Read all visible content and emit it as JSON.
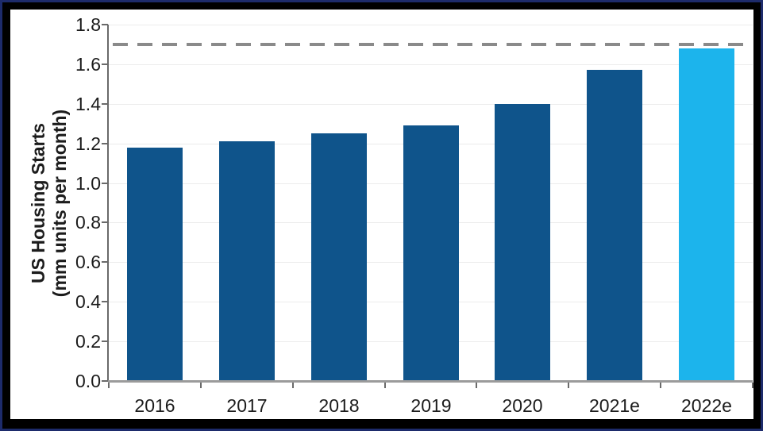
{
  "frame": {
    "outer_border_color": "#1D2B6B",
    "inner_border_color": "#000000",
    "canvas_color": "#ffffff"
  },
  "chart_data": {
    "type": "bar",
    "title": "",
    "ylabel_line1": "US Housing Starts",
    "ylabel_line2": "(mm units per month)",
    "xlabel": "",
    "categories": [
      "2016",
      "2017",
      "2018",
      "2019",
      "2020",
      "2021e",
      "2022e"
    ],
    "values": [
      1.18,
      1.21,
      1.25,
      1.29,
      1.4,
      1.57,
      1.68
    ],
    "bar_colors": [
      "#0F548B",
      "#0F548B",
      "#0F548B",
      "#0F548B",
      "#0F548B",
      "#0F548B",
      "#1CB4EC"
    ],
    "ylim": [
      0,
      1.8
    ],
    "ytick_step": 0.2,
    "yticks": [
      "1.8",
      "1.6",
      "1.4",
      "1.2",
      "1.0",
      "0.8",
      "0.6",
      "0.4",
      "0.2",
      "0.0"
    ],
    "reference_line": {
      "value": 1.7,
      "style": "dashed",
      "color": "#8a8a8a"
    },
    "grid": "horizontal-on",
    "legend": "none",
    "styles": {
      "grid_color": "#ececec",
      "axis_color": "#6a6a6a",
      "baseline_color": "#9b9b9b",
      "text_color": "#1c1c1c"
    }
  }
}
